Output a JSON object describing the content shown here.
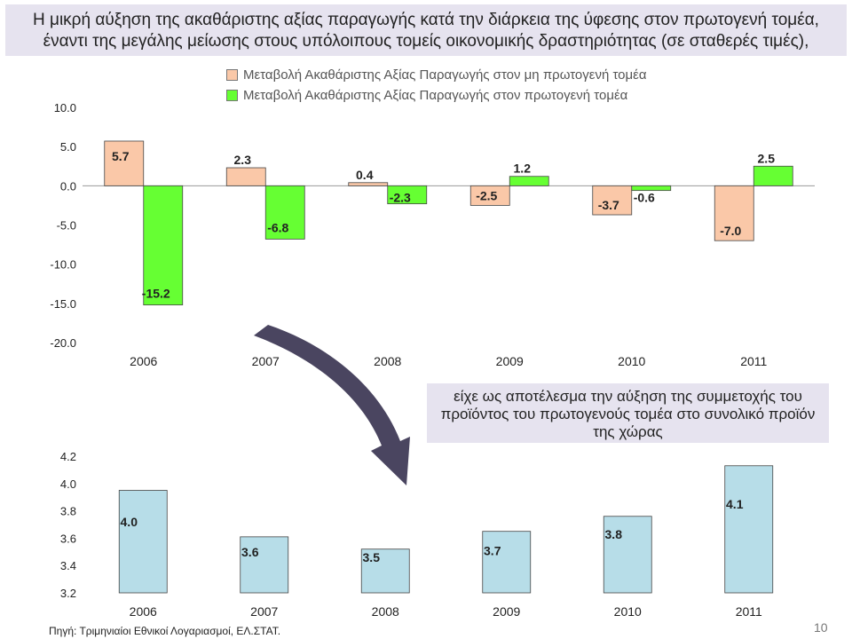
{
  "title": "Η μικρή αύξηση της ακαθάριστης αξίας παραγωγής κατά την διάρκεια της ύφεσης στον πρωτογενή τομέα, έναντι της μεγάλης μείωσης στους υπόλοιπους τομείς οικονομικής δραστηριότητας (σε σταθερές τιμές),",
  "note": "είχε ως αποτέλεσμα την αύξηση της συμμετοχής του προϊόντος του πρωτογενούς τομέα στο συνολικό προϊόν της χώρας",
  "source": "Πηγή: Τριμηνιαίοι Εθνικοί Λογαριασμοί, ΕΛ.ΣΤΑΤ.",
  "page_number": "10",
  "colors": {
    "non_primary": "#fac8a8",
    "primary": "#66ff33",
    "share": "#b7dde8",
    "bar_border": "#444444",
    "title_bg": "#e6e3ef",
    "arrow": "#4a4560"
  },
  "chart_data": [
    {
      "type": "bar",
      "categories": [
        "2006",
        "2007",
        "2008",
        "2009",
        "2010",
        "2011"
      ],
      "series": [
        {
          "name": "Μεταβολή Ακαθάριστης Αξίας Παραγωγής στον μη πρωτογενή τομέα",
          "values": [
            5.7,
            2.3,
            0.4,
            -2.5,
            -3.7,
            -7.0
          ],
          "labels": [
            "5.7",
            "2.3",
            "0.4",
            "-2.5",
            "-3.7",
            "-7.0"
          ]
        },
        {
          "name": "Μεταβολή Ακαθάριστης Αξίας Παραγωγής στον πρωτογενή τομέα",
          "values": [
            -15.2,
            -6.8,
            -2.3,
            1.2,
            -0.6,
            2.5
          ],
          "labels": [
            "-15.2",
            "-6.8",
            "-2.3",
            "1.2",
            "-0.6",
            "2.5"
          ]
        }
      ],
      "ylim": [
        -20,
        10
      ],
      "yticks": [
        "10.0",
        "5.0",
        "0.0",
        "-5.0",
        "-10.0",
        "-15.0",
        "-20.0"
      ],
      "ytick_values": [
        10,
        5,
        0,
        -5,
        -10,
        -15,
        -20
      ],
      "legend": "top"
    },
    {
      "type": "bar",
      "categories": [
        "2006",
        "2007",
        "2008",
        "2009",
        "2010",
        "2011"
      ],
      "values": [
        3.95,
        3.61,
        3.52,
        3.65,
        3.76,
        4.13
      ],
      "labels": [
        "4.0",
        "3.6",
        "3.5",
        "3.7",
        "3.8",
        "4.1"
      ],
      "ylim": [
        3.2,
        4.2
      ],
      "yticks": [
        "4.2",
        "4.0",
        "3.8",
        "3.6",
        "3.4",
        "3.2"
      ],
      "ytick_values": [
        4.2,
        4.0,
        3.8,
        3.6,
        3.4,
        3.2
      ]
    }
  ]
}
